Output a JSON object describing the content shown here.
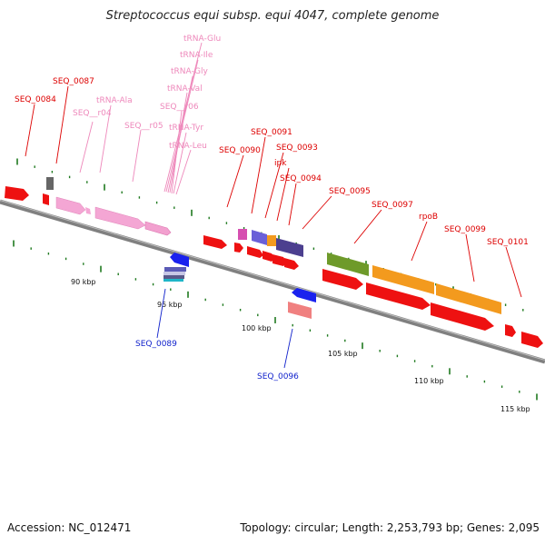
{
  "header": {
    "title": "Streptococcus equi subsp. equi 4047, complete genome"
  },
  "footer": {
    "accession": "Accession: NC_012471",
    "topology": "Topology: circular; Length: 2,253,793 bp; Genes: 2,095"
  },
  "colors": {
    "forward_cds": "#ee1111",
    "trna": "#f4a6d4",
    "rrna": "#ee88cc",
    "operon_orange": "#f39a1e",
    "operon_green": "#6e9a2a",
    "reverse_blue": "#1a22ee",
    "label_red": "#dd0000",
    "label_pink": "#ee88bb",
    "label_blue": "#1122cc",
    "tick_green": "#1f7a1f",
    "backbone": "#808080"
  },
  "scale": {
    "ticks": [
      "90 kbp",
      "95 kbp",
      "100 kbp",
      "105 kbp",
      "110 kbp",
      "115 kbp"
    ]
  },
  "labels": [
    {
      "text": "SEQ_0084",
      "color": "red"
    },
    {
      "text": "SEQ_0087",
      "color": "red"
    },
    {
      "text": "tRNA-Glu",
      "color": "pink"
    },
    {
      "text": "tRNA-Ile",
      "color": "pink"
    },
    {
      "text": "tRNA-Gly",
      "color": "pink"
    },
    {
      "text": "tRNA-Val",
      "color": "pink"
    },
    {
      "text": "tRNA-Ala",
      "color": "pink"
    },
    {
      "text": "SEQ__r04",
      "color": "pink"
    },
    {
      "text": "SEQ__r06",
      "color": "pink"
    },
    {
      "text": "SEQ__r05",
      "color": "pink"
    },
    {
      "text": "tRNA-Tyr",
      "color": "pink"
    },
    {
      "text": "tRNA-Leu",
      "color": "pink"
    },
    {
      "text": "SEQ_0091",
      "color": "red"
    },
    {
      "text": "SEQ_0090",
      "color": "red"
    },
    {
      "text": "SEQ_0093",
      "color": "red"
    },
    {
      "text": "ipk",
      "color": "red"
    },
    {
      "text": "SEQ_0094",
      "color": "red"
    },
    {
      "text": "SEQ_0095",
      "color": "red"
    },
    {
      "text": "SEQ_0097",
      "color": "red"
    },
    {
      "text": "rpoB",
      "color": "red"
    },
    {
      "text": "SEQ_0099",
      "color": "red"
    },
    {
      "text": "SEQ_0101",
      "color": "red"
    },
    {
      "text": "SEQ_0089",
      "color": "blue"
    },
    {
      "text": "SEQ_0096",
      "color": "blue"
    }
  ]
}
